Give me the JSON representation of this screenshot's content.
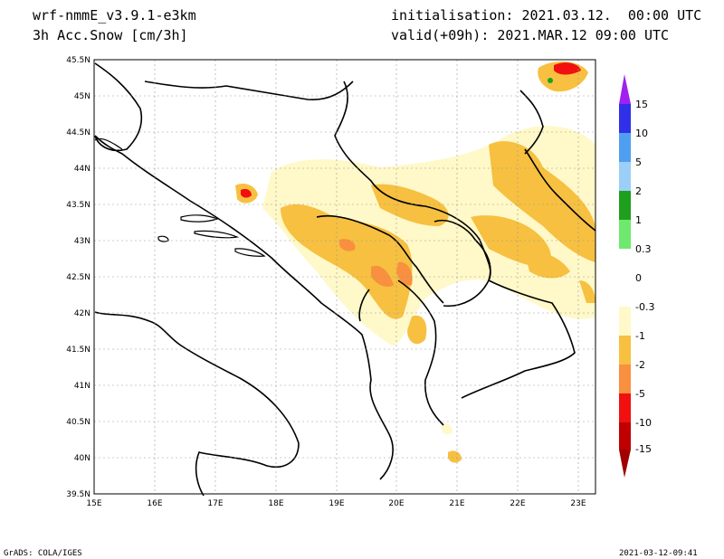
{
  "header": {
    "model": "wrf-nmmE_v3.9.1-e3km",
    "field": "3h Acc.Snow [cm/3h]",
    "initialisation": "initialisation: 2021.03.12.  00:00 UTC",
    "valid": "valid(+09h): 2021.MAR.12 09:00 UTC"
  },
  "map": {
    "lon_range": [
      15,
      23.25
    ],
    "lat_range": [
      39.5,
      45.5
    ],
    "lon_ticks": [
      "15E",
      "16E",
      "17E",
      "18E",
      "19E",
      "20E",
      "21E",
      "22E",
      "23E"
    ],
    "lat_ticks": [
      "39.5N",
      "40N",
      "40.5N",
      "41N",
      "41.5N",
      "42N",
      "42.5N",
      "43N",
      "43.5N",
      "44N",
      "44.5N",
      "45N",
      "45.5N"
    ],
    "grid": "dotted"
  },
  "colorbar": {
    "levels": [
      "15",
      "10",
      "5",
      "2",
      "1",
      "0.3",
      "0",
      "-0.3",
      "-1",
      "-2",
      "-5",
      "-10",
      "-15"
    ],
    "colors": [
      "#a020f0",
      "#3030e8",
      "#4f9ff0",
      "#9ccff8",
      "#1ea01e",
      "#6ee86e",
      "#ffffff",
      "#ffffff",
      "#fff8c8",
      "#f7c040",
      "#f89040",
      "#f01010",
      "#c00000",
      "#a00000"
    ]
  },
  "footer": {
    "left": "GrADS: COLA/IGES",
    "right": "2021-03-12-09:41"
  }
}
